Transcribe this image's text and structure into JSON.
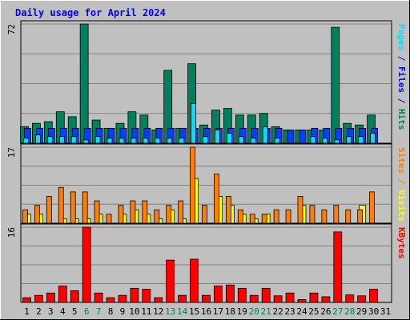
{
  "chart_data": {
    "type": "bar",
    "title": "Daily usage for April 2024",
    "categories": [
      "1",
      "2",
      "3",
      "4",
      "5",
      "6",
      "7",
      "8",
      "9",
      "10",
      "11",
      "12",
      "13",
      "14",
      "15",
      "16",
      "17",
      "18",
      "19",
      "20",
      "21",
      "22",
      "23",
      "24",
      "25",
      "26",
      "27",
      "28",
      "29",
      "30",
      "31"
    ],
    "weekend_days": [
      "6",
      "7",
      "13",
      "14",
      "20",
      "21",
      "27",
      "28"
    ],
    "panels": [
      {
        "id": "hits",
        "ymax": 72,
        "ymax_label": "72",
        "grid": true,
        "label_parts": [
          {
            "text": "Pages",
            "color": "#00e0ff"
          },
          {
            "text": " / ",
            "color": "#0000ff"
          },
          {
            "text": "Files",
            "color": "#0000ff"
          },
          {
            "text": " / ",
            "color": "#0000ff"
          },
          {
            "text": "Hits",
            "color": "#00805c"
          }
        ],
        "series": [
          {
            "name": "Hits",
            "color": "#00805c",
            "values": [
              10,
              12,
              13,
              19,
              16,
              72,
              14,
              9,
              12,
              19,
              17,
              8,
              44,
              9,
              48,
              11,
              20,
              21,
              17,
              17,
              18,
              10,
              8,
              8,
              8,
              8,
              70,
              12,
              11,
              17,
              0
            ]
          },
          {
            "name": "Files",
            "color": "#0040ff",
            "values": [
              9,
              9,
              9,
              9,
              9,
              9,
              9,
              9,
              9,
              9,
              9,
              9,
              9,
              9,
              9,
              9,
              9,
              9,
              9,
              9,
              9,
              9,
              8,
              8,
              9,
              9,
              9,
              9,
              9,
              9,
              0
            ]
          },
          {
            "name": "Pages",
            "color": "#00e0ff",
            "values": [
              3,
              5,
              4,
              4,
              4,
              2,
              4,
              3,
              3,
              3,
              3,
              3,
              3,
              3,
              24,
              4,
              8,
              6,
              4,
              3,
              10,
              3,
              0,
              0,
              4,
              3,
              2,
              4,
              4,
              6,
              0
            ]
          }
        ]
      },
      {
        "id": "visits",
        "ymax": 17,
        "ymax_label": "17",
        "grid": true,
        "label_parts": [
          {
            "text": "Sites",
            "color": "#ff8000"
          },
          {
            "text": " / ",
            "color": "#ff8000"
          },
          {
            "text": "Visits",
            "color": "#ffff00"
          }
        ],
        "series": [
          {
            "name": "Visits",
            "color": "#ffff00",
            "values": [
              2,
              2,
              0,
              1,
              1,
              1,
              2,
              0,
              2,
              3,
              2,
              1,
              3,
              1,
              10,
              0,
              6,
              4,
              2,
              1,
              2,
              0,
              0,
              4,
              0,
              0,
              0,
              0,
              4,
              0,
              0
            ]
          },
          {
            "name": "Sites",
            "color": "#ff8000",
            "values": [
              3,
              4,
              6,
              8,
              7,
              7,
              5,
              2,
              4,
              5,
              5,
              3,
              4,
              5,
              17,
              4,
              11,
              6,
              3,
              2,
              2,
              3,
              3,
              6,
              4,
              3,
              4,
              3,
              3,
              7,
              0
            ]
          }
        ]
      },
      {
        "id": "kbytes",
        "ymax": 16,
        "ymax_label": "16",
        "grid": true,
        "label_parts": [
          {
            "text": "KBytes",
            "color": "#ff0000"
          }
        ],
        "series": [
          {
            "name": "KBytes",
            "color": "#ff0000",
            "values": [
              1,
              1.5,
              2,
              3.5,
              2.5,
              16,
              2,
              1,
              1.5,
              3,
              2.8,
              1,
              9,
              1.5,
              9.2,
              1.5,
              3.5,
              3.7,
              3,
              1.5,
              3,
              1.4,
              2,
              0.6,
              2,
              1.2,
              15,
              1.6,
              1.4,
              2.8,
              0
            ]
          }
        ]
      }
    ],
    "colors": {
      "title": "#0000ff",
      "weekday_label": "#000000",
      "weekend_label": "#00805c",
      "plot_bg": "#c0c0c0",
      "frame": "#808080",
      "border_light": "#ffffff",
      "border_dark": "#000000",
      "grid": "#808080"
    }
  }
}
